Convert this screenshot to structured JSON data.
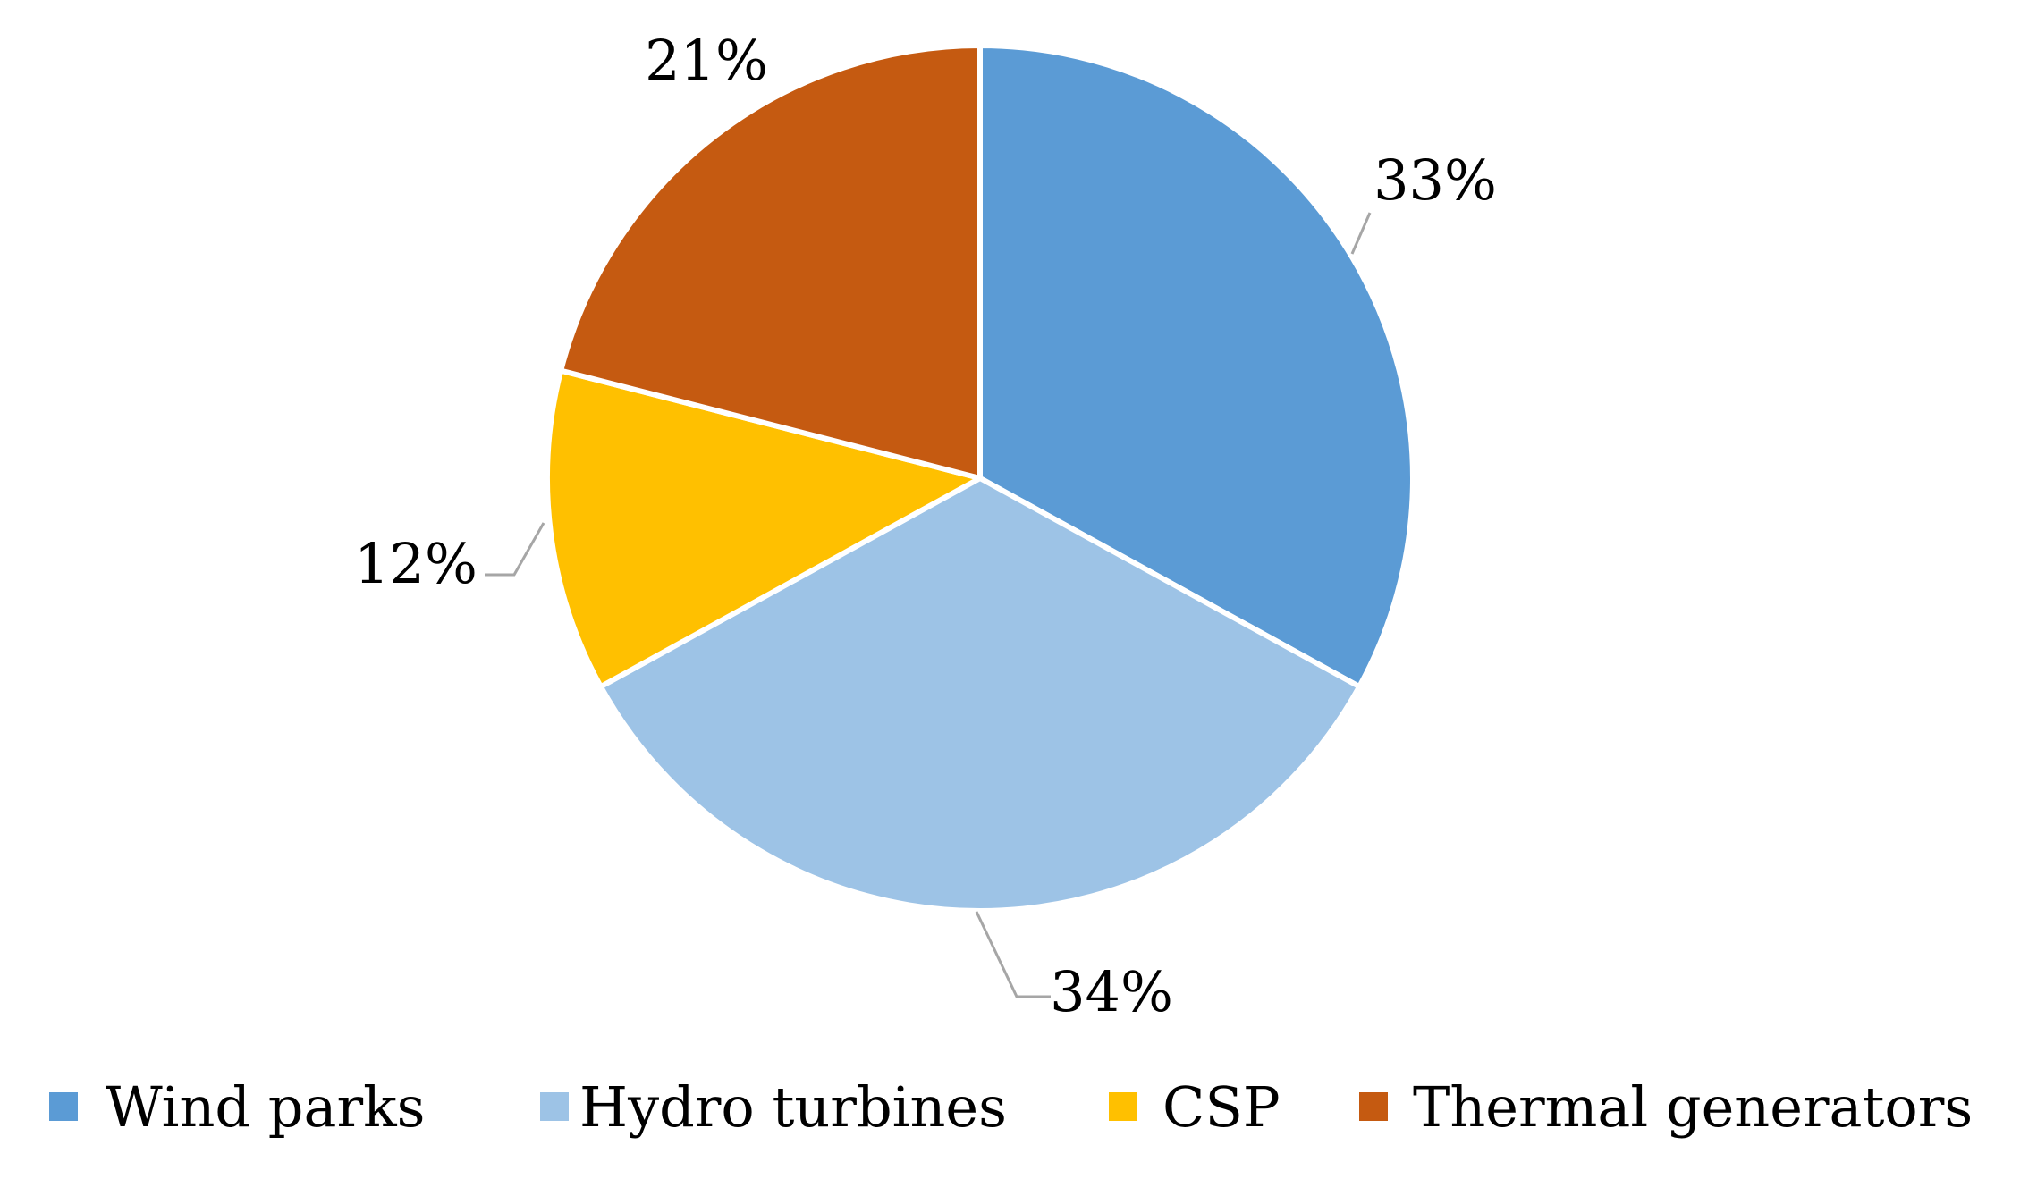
{
  "chart_data": {
    "type": "pie",
    "title": "",
    "start_angle_deg": 0,
    "direction": "clockwise",
    "legend_position": "bottom",
    "slices": [
      {
        "name": "Wind parks",
        "value": 33,
        "label": "33%",
        "color": "#5b9bd5"
      },
      {
        "name": "Hydro turbines",
        "value": 34,
        "label": "34%",
        "color": "#9dc3e6"
      },
      {
        "name": "CSP",
        "value": 12,
        "label": "12%",
        "color": "#ffc000"
      },
      {
        "name": "Thermal generators",
        "value": 21,
        "label": "21%",
        "color": "#c55a11"
      }
    ]
  }
}
